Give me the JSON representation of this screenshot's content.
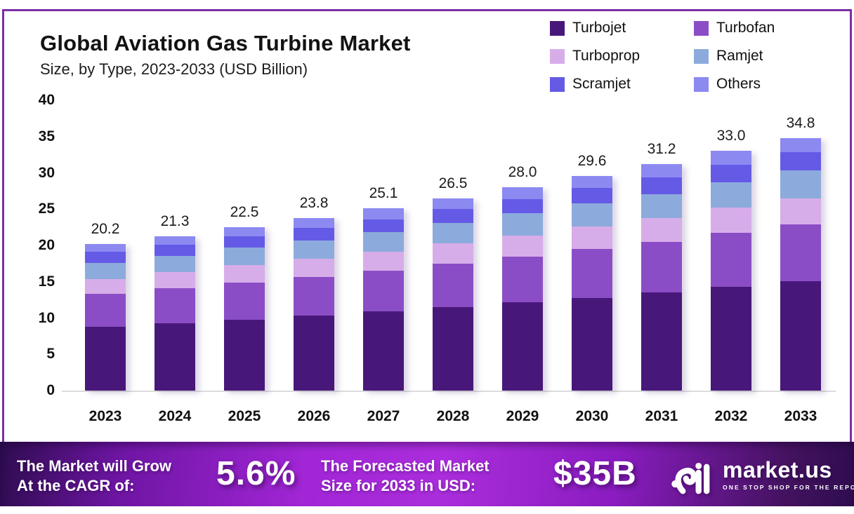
{
  "header": {
    "title": "Global Aviation Gas Turbine Market",
    "subtitle": "Size, by Type, 2023-2033 (USD Billion)"
  },
  "legend": [
    {
      "label": "Turbojet",
      "color": "#471879"
    },
    {
      "label": "Turbofan",
      "color": "#8b4dc6"
    },
    {
      "label": "Turboprop",
      "color": "#d7ade9"
    },
    {
      "label": "Ramjet",
      "color": "#8cabdc"
    },
    {
      "label": "Scramjet",
      "color": "#655ae6"
    },
    {
      "label": "Others",
      "color": "#8c89f1"
    }
  ],
  "chart_data": {
    "type": "bar",
    "stacked": true,
    "title": "Global Aviation Gas Turbine Market Size, by Type, 2023-2033 (USD Billion)",
    "xlabel": "",
    "ylabel": "USD Billion",
    "ylim": [
      0,
      40
    ],
    "yticks": [
      40,
      35,
      30,
      25,
      20,
      15,
      10,
      5,
      0
    ],
    "grid": false,
    "legend_position": "top-right",
    "categories": [
      "2023",
      "2024",
      "2025",
      "2026",
      "2027",
      "2028",
      "2029",
      "2030",
      "2031",
      "2032",
      "2033"
    ],
    "totals": [
      20.2,
      21.3,
      22.5,
      23.8,
      25.1,
      26.5,
      28.0,
      29.6,
      31.2,
      33.0,
      34.8
    ],
    "total_labels": [
      "20.2",
      "21.3",
      "22.5",
      "23.8",
      "25.1",
      "26.5",
      "28.0",
      "29.6",
      "31.2",
      "33.0",
      "34.8"
    ],
    "series": [
      {
        "name": "Turbojet",
        "color": "#471879",
        "values": [
          8.8,
          9.3,
          9.8,
          10.3,
          10.9,
          11.5,
          12.2,
          12.8,
          13.5,
          14.3,
          15.1
        ]
      },
      {
        "name": "Turbofan",
        "color": "#8b4dc6",
        "values": [
          4.5,
          4.8,
          5.1,
          5.4,
          5.6,
          6.0,
          6.3,
          6.7,
          7.0,
          7.4,
          7.8
        ]
      },
      {
        "name": "Turboprop",
        "color": "#d7ade9",
        "values": [
          2.1,
          2.2,
          2.4,
          2.5,
          2.6,
          2.8,
          2.9,
          3.1,
          3.3,
          3.5,
          3.6
        ]
      },
      {
        "name": "Ramjet",
        "color": "#8cabdc",
        "values": [
          2.2,
          2.3,
          2.4,
          2.5,
          2.7,
          2.8,
          3.0,
          3.2,
          3.3,
          3.5,
          3.8
        ]
      },
      {
        "name": "Scramjet",
        "color": "#655ae6",
        "values": [
          1.5,
          1.5,
          1.6,
          1.7,
          1.8,
          1.9,
          2.0,
          2.1,
          2.3,
          2.4,
          2.6
        ]
      },
      {
        "name": "Others",
        "color": "#8c89f1",
        "values": [
          1.1,
          1.2,
          1.2,
          1.4,
          1.5,
          1.5,
          1.6,
          1.7,
          1.8,
          1.9,
          1.9
        ]
      }
    ]
  },
  "banner": {
    "cagr_label_line1": "The Market will Grow",
    "cagr_label_line2": "At the CAGR of:",
    "cagr_value": "5.6%",
    "forecast_label_line1": "The Forecasted Market",
    "forecast_label_line2": "Size for 2033 in USD:",
    "forecast_value": "$35B",
    "logo_name": "market.us",
    "logo_tagline": "ONE STOP SHOP FOR THE REPORTS"
  },
  "colors": {
    "frame_border": "#7b2fa4",
    "axis_line": "#dcdcdc",
    "banner_center": "#a826dc",
    "banner_edge": "#2e0c50",
    "text": "#111111"
  }
}
